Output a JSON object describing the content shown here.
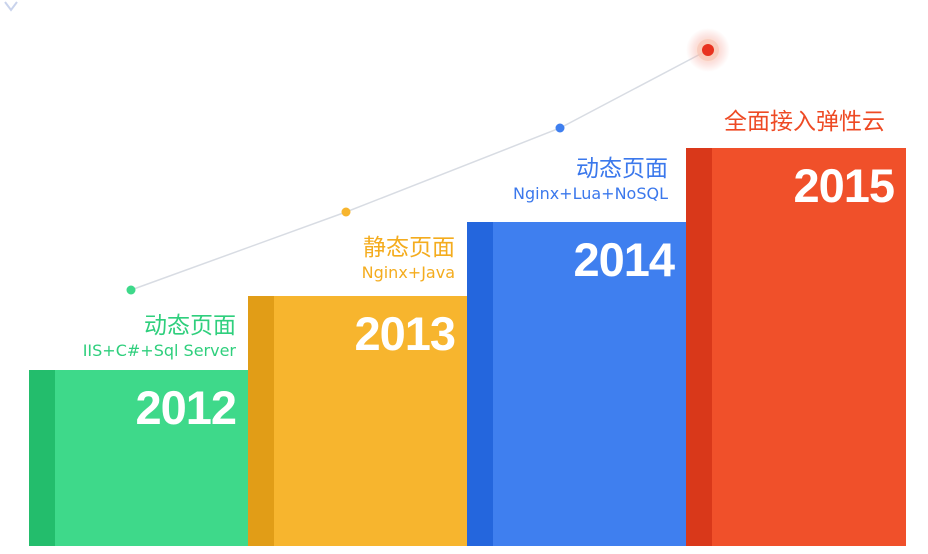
{
  "stages": [
    {
      "year": "2012",
      "title": "动态页面",
      "tech": "IIS+C#+Sql Server",
      "color": "#3ed98a"
    },
    {
      "year": "2013",
      "title": "静态页面",
      "tech": "Nginx+Java",
      "color": "#f7b52e"
    },
    {
      "year": "2014",
      "title": "动态页面",
      "tech": "Nginx+Lua+NoSQL",
      "color": "#3f7fef"
    },
    {
      "year": "2015",
      "title": "全面接入弹性云",
      "color": "#f0502a"
    }
  ],
  "trend": {
    "markers": [
      {
        "name": "marker-2012",
        "color": "#3ed98a"
      },
      {
        "name": "marker-2013",
        "color": "#f7b52e"
      },
      {
        "name": "marker-2014",
        "color": "#3f7fef"
      },
      {
        "name": "marker-2015",
        "color": "#e8321e"
      }
    ],
    "line_color": "#d8dce3"
  }
}
